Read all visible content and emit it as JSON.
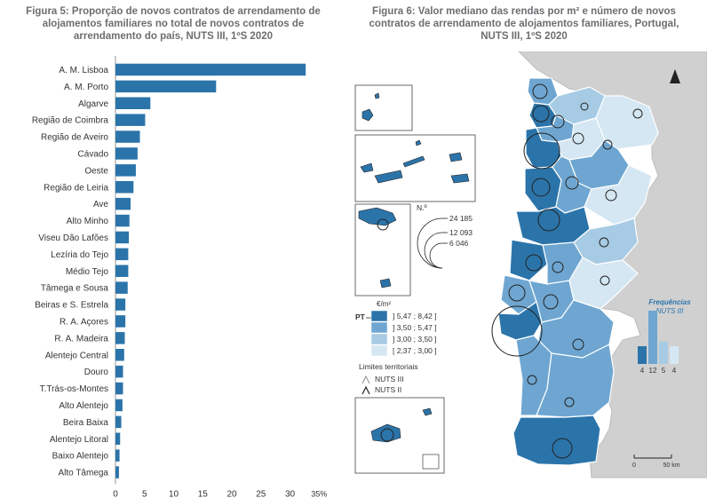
{
  "fig5": {
    "title_lines": [
      "Figura 5: Proporção de novos contratos de arrendamento de",
      "alojamentos familiares no total de novos contratos de",
      "arrendamento do país, NUTS III, 1ºS 2020"
    ],
    "chart_data": {
      "type": "bar",
      "orientation": "horizontal",
      "categories": [
        "A. M. Lisboa",
        "A. M. Porto",
        "Algarve",
        "Região de Coimbra",
        "Região de Aveiro",
        "Cávado",
        "Oeste",
        "Região de Leiria",
        "Ave",
        "Alto Minho",
        "Viseu Dão Lafões",
        "Lezíria do Tejo",
        "Médio Tejo",
        "Tâmega e Sousa",
        "Beiras e S. Estrela",
        "R. A. Açores",
        "R. A. Madeira",
        "Alentejo Central",
        "Douro",
        "T.Trás-os-Montes",
        "Alto Alentejo",
        "Beira Baixa",
        "Alentejo Litoral",
        "Baixo Alentejo",
        "Alto Tâmega"
      ],
      "values": [
        32.7,
        17.3,
        6.0,
        5.1,
        4.2,
        3.8,
        3.5,
        3.1,
        2.6,
        2.4,
        2.3,
        2.2,
        2.2,
        2.1,
        1.7,
        1.7,
        1.6,
        1.5,
        1.3,
        1.3,
        1.2,
        1.0,
        0.8,
        0.7,
        0.6
      ],
      "xlim": [
        0,
        35
      ],
      "ticks": [
        "0",
        "5",
        "10",
        "15",
        "20",
        "25",
        "30",
        "35%"
      ],
      "bar_color": "#2b74aa"
    }
  },
  "fig6": {
    "title_lines": [
      "Figura 6: Valor mediano das rendas por m² e número de novos",
      "contratos de arrendamento de alojamentos familiares, Portugal,",
      "NUTS III, 1ºS 2020"
    ],
    "north": "N.º",
    "circle_legend": [
      "24 185",
      "12 093",
      "6 046"
    ],
    "unit": "€/m²",
    "pt_label": "PT",
    "classes": [
      {
        "label": "] 5,47 ; 8,42 ]",
        "color": "#2b74aa"
      },
      {
        "label": "] 3,50 ; 5,47 ]",
        "color": "#6ea6d1"
      },
      {
        "label": "] 3,00 ; 3,50 ]",
        "color": "#a7cbe4"
      },
      {
        "label": "[ 2,37 ; 3,00 ]",
        "color": "#d5e7f3"
      }
    ],
    "freq_title": "Frequências",
    "freq_sub": "NUTS III",
    "freq_values": [
      4,
      12,
      5,
      4
    ],
    "freq_labels": [
      "4",
      "12",
      "5",
      "4"
    ],
    "limits_title": "Limites territoriais",
    "limits": [
      "NUTS III",
      "NUTS II"
    ],
    "scale_labels": [
      "0",
      "50 km"
    ]
  }
}
